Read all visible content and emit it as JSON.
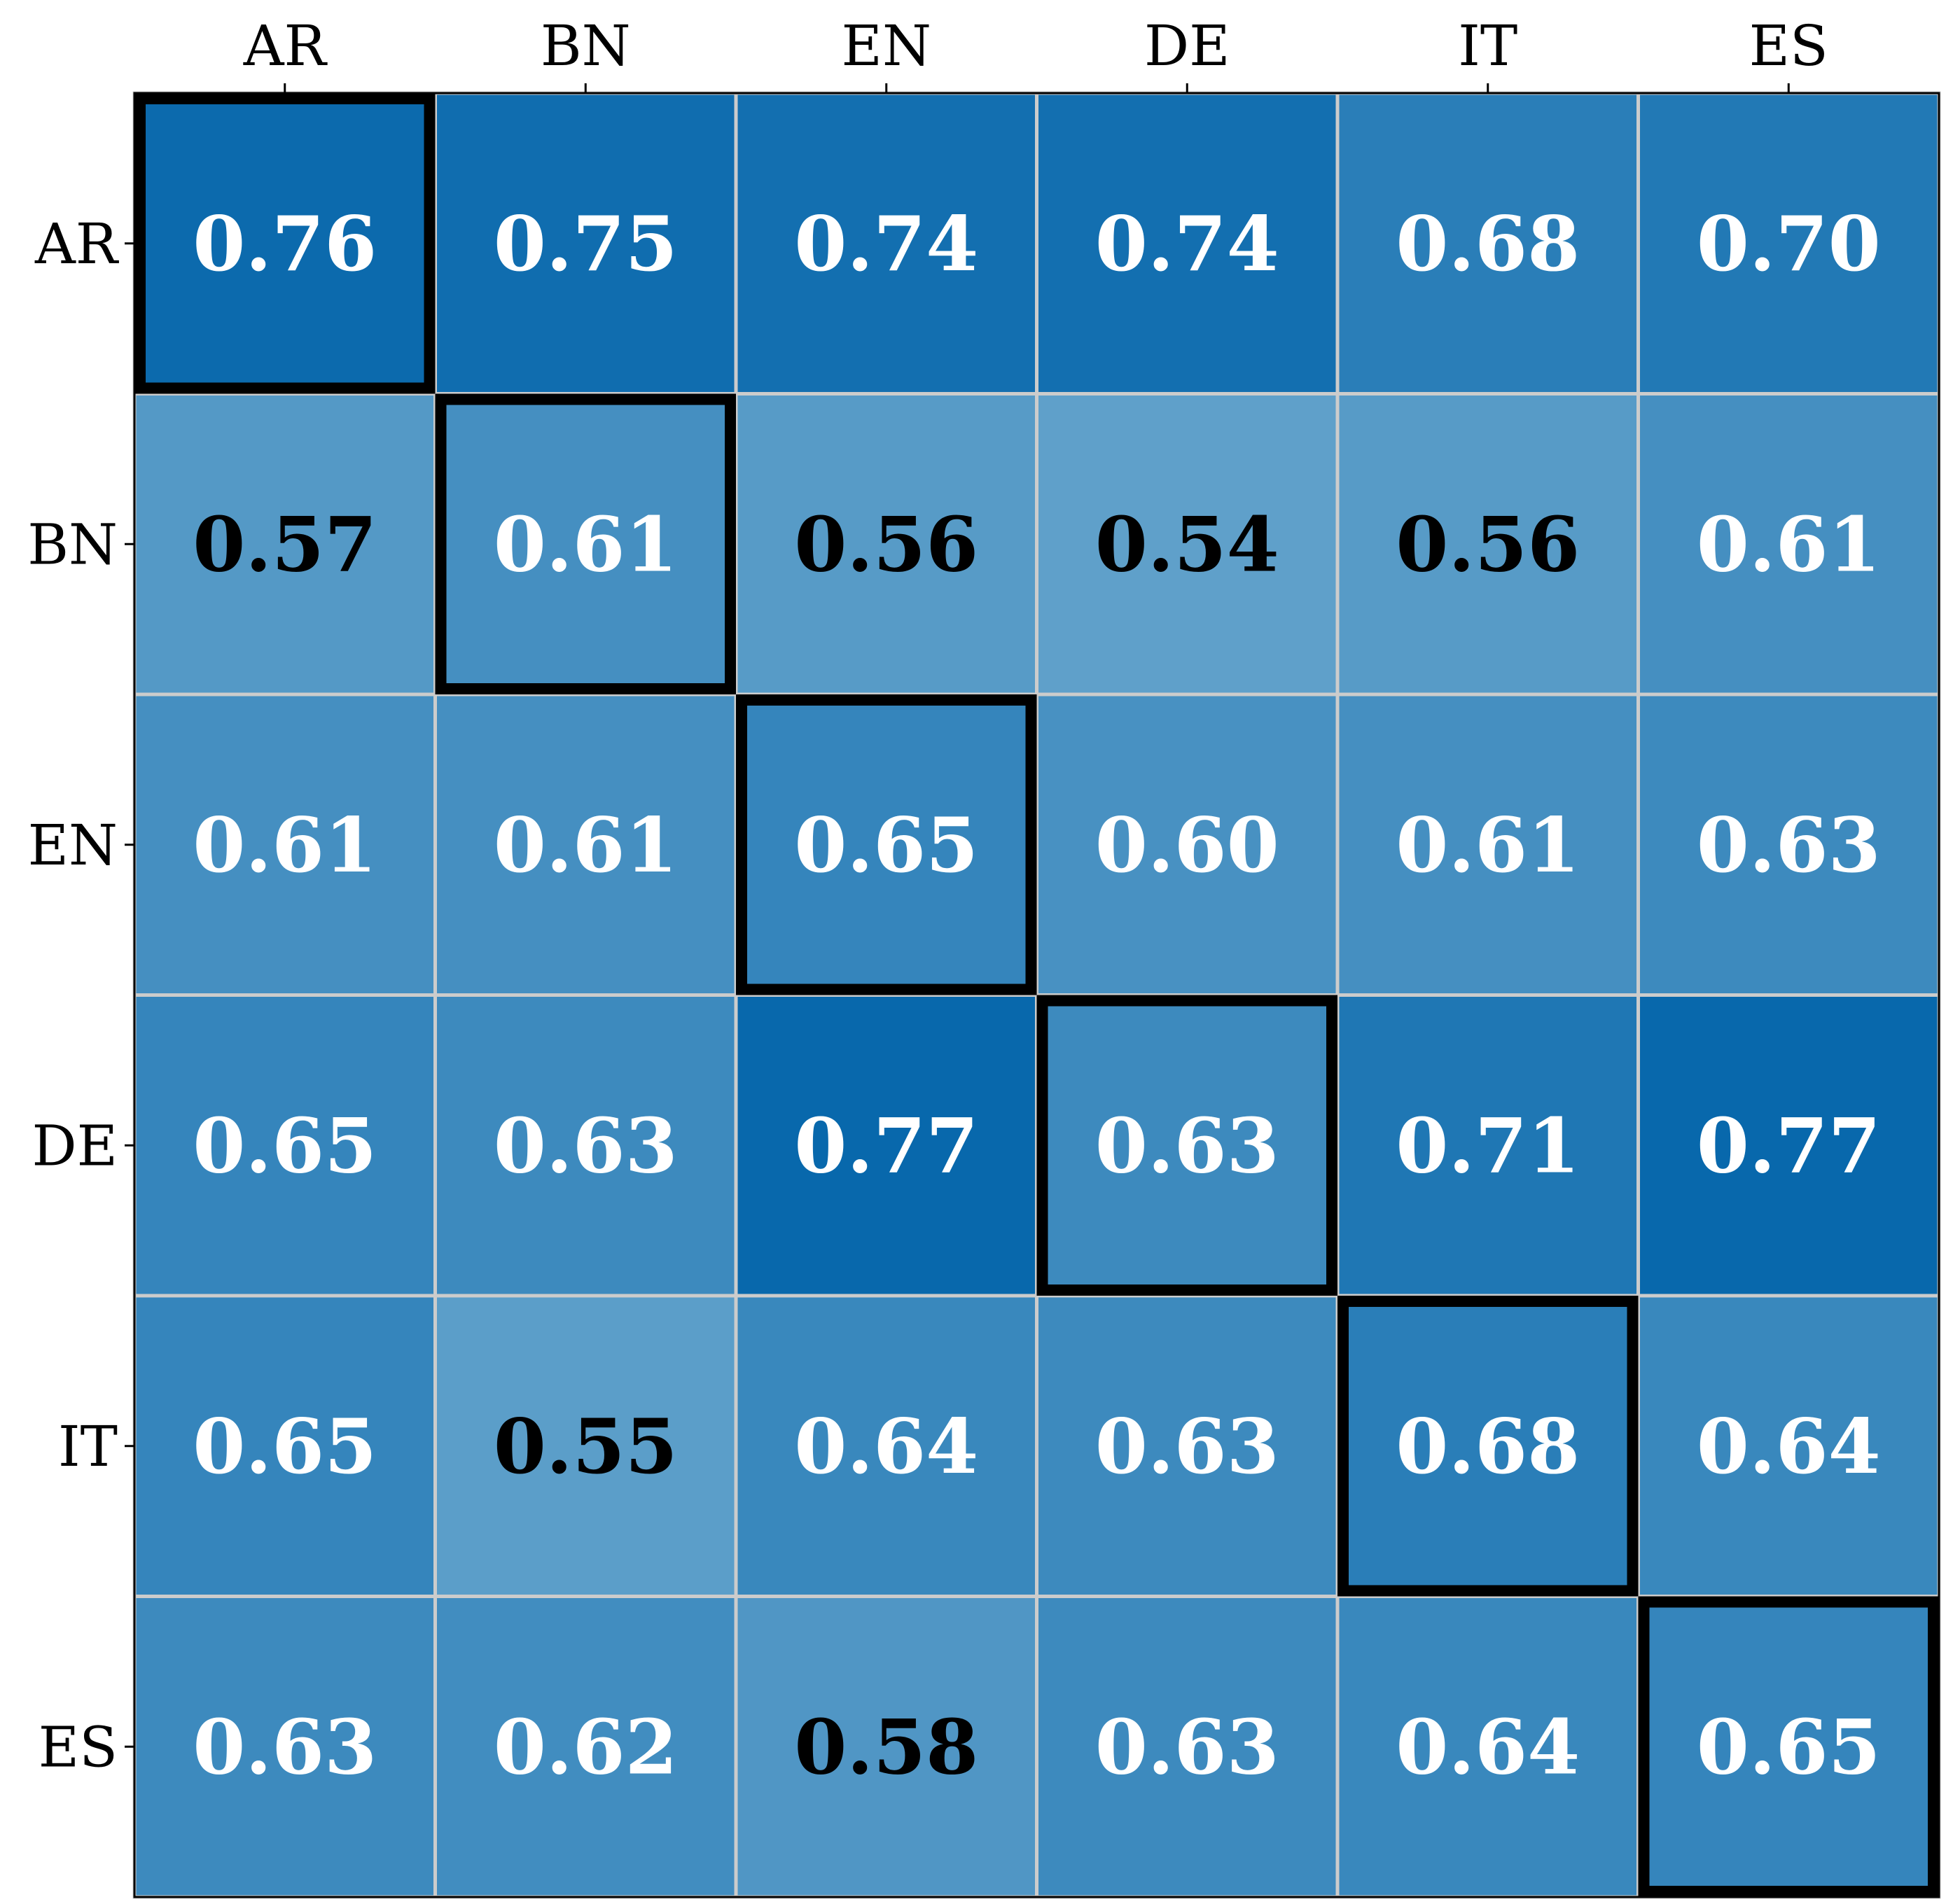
{
  "chart_data": {
    "type": "heatmap",
    "title": "",
    "xlabel": "",
    "ylabel": "",
    "x_categories": [
      "AR",
      "BN",
      "EN",
      "DE",
      "IT",
      "ES"
    ],
    "y_categories": [
      "AR",
      "BN",
      "EN",
      "DE",
      "IT",
      "ES"
    ],
    "x_tick_position": "top",
    "values": [
      [
        0.76,
        0.75,
        0.74,
        0.74,
        0.68,
        0.7
      ],
      [
        0.57,
        0.61,
        0.56,
        0.54,
        0.56,
        0.61
      ],
      [
        0.61,
        0.61,
        0.65,
        0.6,
        0.61,
        0.63
      ],
      [
        0.65,
        0.63,
        0.77,
        0.63,
        0.71,
        0.77
      ],
      [
        0.65,
        0.55,
        0.64,
        0.63,
        0.68,
        0.64
      ],
      [
        0.63,
        0.62,
        0.58,
        0.63,
        0.64,
        0.65
      ]
    ],
    "colormap": "Blues",
    "color_low": "#5fa0ca",
    "color_high": "#0868ac",
    "highlight": "diagonal",
    "highlight_color": "#000000",
    "grid_color": "#cccccc",
    "grid": true,
    "legend": "none"
  }
}
